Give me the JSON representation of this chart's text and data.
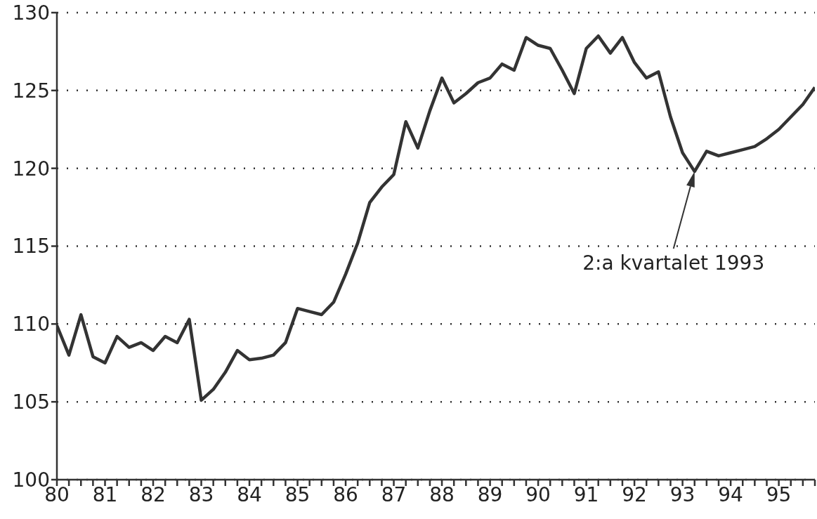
{
  "chart_data": {
    "type": "line",
    "x": [
      80,
      80.25,
      80.5,
      80.75,
      81,
      81.25,
      81.5,
      81.75,
      82,
      82.25,
      82.5,
      82.75,
      83,
      83.25,
      83.5,
      83.75,
      84,
      84.25,
      84.5,
      84.75,
      85,
      85.25,
      85.5,
      85.75,
      86,
      86.25,
      86.5,
      86.75,
      87,
      87.25,
      87.5,
      87.75,
      88,
      88.25,
      88.5,
      88.75,
      89,
      89.25,
      89.5,
      89.75,
      90,
      90.25,
      90.5,
      90.75,
      91,
      91.25,
      91.5,
      91.75,
      92,
      92.25,
      92.5,
      92.75,
      93,
      93.25,
      93.5,
      93.75,
      94,
      94.25,
      94.5,
      94.75,
      95,
      95.25,
      95.5,
      95.75
    ],
    "series": [
      {
        "color": "#333333",
        "values": [
          109.9,
          108.0,
          110.6,
          107.9,
          107.5,
          109.2,
          108.5,
          108.8,
          108.3,
          109.2,
          108.8,
          110.3,
          105.1,
          105.8,
          106.9,
          108.3,
          107.7,
          107.8,
          108.0,
          108.8,
          111.0,
          110.8,
          110.6,
          111.4,
          113.2,
          115.2,
          117.8,
          118.8,
          119.6,
          123.0,
          121.3,
          123.7,
          125.8,
          124.2,
          124.8,
          125.5,
          125.8,
          126.7,
          126.3,
          128.4,
          127.9,
          127.7,
          126.3,
          124.8,
          127.7,
          128.5,
          127.4,
          128.4,
          126.8,
          125.8,
          126.2,
          123.3,
          121.0,
          119.8,
          121.1,
          120.8,
          121.0,
          121.2,
          121.4,
          121.9,
          122.5,
          123.3,
          124.1,
          125.2
        ]
      }
    ],
    "xlim": [
      80,
      95.75
    ],
    "xticks": [
      80,
      {
        "value": 80.25,
        "label": null
      },
      {
        "value": 80.5,
        "label": null
      },
      {
        "value": 80.75,
        "label": null
      },
      81,
      {
        "value": 81.25,
        "label": null
      },
      {
        "value": 81.5,
        "label": null
      },
      {
        "value": 81.75,
        "label": null
      },
      82,
      {
        "value": 82.25,
        "label": null
      },
      {
        "value": 82.5,
        "label": null
      },
      {
        "value": 82.75,
        "label": null
      },
      83,
      {
        "value": 83.25,
        "label": null
      },
      {
        "value": 83.5,
        "label": null
      },
      {
        "value": 83.75,
        "label": null
      },
      84,
      {
        "value": 84.25,
        "label": null
      },
      {
        "value": 84.5,
        "label": null
      },
      {
        "value": 84.75,
        "label": null
      },
      85,
      {
        "value": 85.25,
        "label": null
      },
      {
        "value": 85.5,
        "label": null
      },
      {
        "value": 85.75,
        "label": null
      },
      86,
      {
        "value": 86.25,
        "label": null
      },
      {
        "value": 86.5,
        "label": null
      },
      {
        "value": 86.75,
        "label": null
      },
      87,
      {
        "value": 87.25,
        "label": null
      },
      {
        "value": 87.5,
        "label": null
      },
      {
        "value": 87.75,
        "label": null
      },
      88,
      {
        "value": 88.25,
        "label": null
      },
      {
        "value": 88.5,
        "label": null
      },
      {
        "value": 88.75,
        "label": null
      },
      89,
      {
        "value": 89.25,
        "label": null
      },
      {
        "value": 89.5,
        "label": null
      },
      {
        "value": 89.75,
        "label": null
      },
      90,
      {
        "value": 90.25,
        "label": null
      },
      {
        "value": 90.5,
        "label": null
      },
      {
        "value": 90.75,
        "label": null
      },
      91,
      {
        "value": 91.25,
        "label": null
      },
      {
        "value": 91.5,
        "label": null
      },
      {
        "value": 91.75,
        "label": null
      },
      92,
      {
        "value": 92.25,
        "label": null
      },
      {
        "value": 92.5,
        "label": null
      },
      {
        "value": 92.75,
        "label": null
      },
      93,
      {
        "value": 93.25,
        "label": null
      },
      {
        "value": 93.5,
        "label": null
      },
      {
        "value": 93.75,
        "label": null
      },
      94,
      {
        "value": 94.25,
        "label": null
      },
      {
        "value": 94.5,
        "label": null
      },
      {
        "value": 94.75,
        "label": null
      },
      95,
      {
        "value": 95.25,
        "label": null
      },
      {
        "value": 95.5,
        "label": null
      },
      {
        "value": 95.75,
        "label": null
      }
    ],
    "ylim": [
      100,
      130
    ],
    "yticks": [
      100,
      105,
      110,
      115,
      120,
      125,
      130
    ],
    "grid": "y",
    "marker": "none",
    "line_style": "solid",
    "annotations": [
      "2:a kvartalet 1993"
    ]
  }
}
